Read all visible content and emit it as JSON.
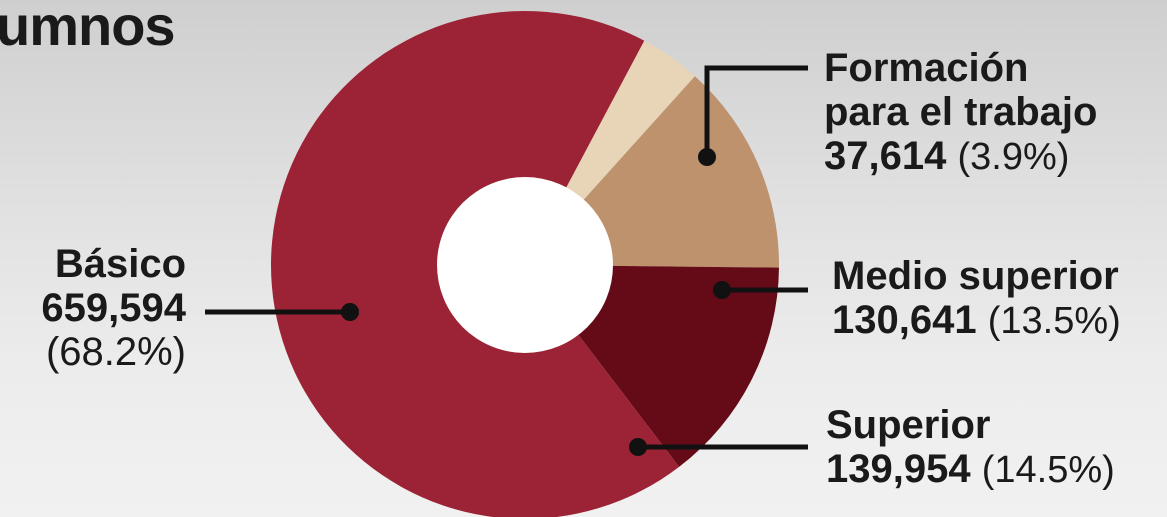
{
  "title": "umnos",
  "chart_data": {
    "type": "pie",
    "title": "umnos",
    "slices": [
      {
        "label": "Básico",
        "value": 659594,
        "value_text": "659,594",
        "percent_text": "(68.2%)",
        "color": "#9b2335"
      },
      {
        "label": "Formación para el trabajo",
        "label_lines": [
          "Formación",
          "para el trabajo"
        ],
        "value": 37614,
        "value_text": "37,614",
        "percent_text": "(3.9%)",
        "color": "#e8d5b8"
      },
      {
        "label": "Medio superior",
        "value": 130641,
        "value_text": "130,641",
        "percent_text": "(13.5%)",
        "color": "#bd926c"
      },
      {
        "label": "Superior",
        "value": 139954,
        "value_text": "139,954",
        "percent_text": "(14.5%)",
        "color": "#640b17"
      }
    ]
  }
}
